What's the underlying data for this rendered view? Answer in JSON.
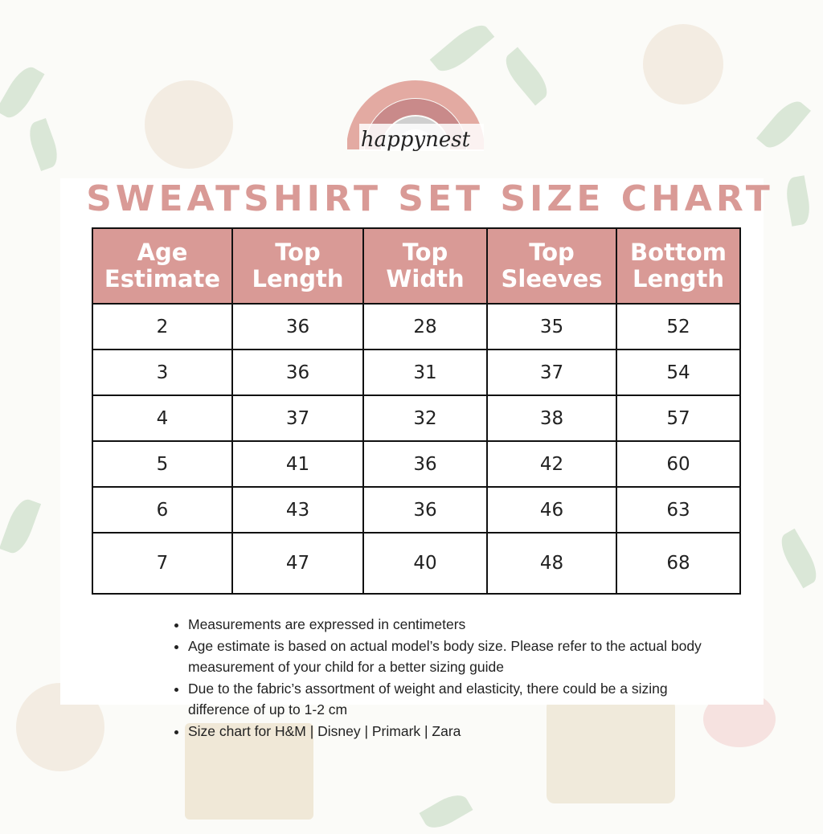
{
  "brand": {
    "logo_text": "happynest",
    "colors": {
      "rainbow_outer": "#e3aaa2",
      "rainbow_mid": "#c98a8a",
      "rainbow_inner": "#cfcfcf"
    }
  },
  "title": "SWEATSHIRT SET SIZE CHART",
  "accent_color": "#d99a96",
  "table": {
    "headers": [
      [
        "Age",
        "Estimate"
      ],
      [
        "Top",
        "Length"
      ],
      [
        "Top",
        "Width"
      ],
      [
        "Top",
        "Sleeves"
      ],
      [
        "Bottom",
        "Length"
      ]
    ],
    "rows": [
      [
        "2",
        "36",
        "28",
        "35",
        "52"
      ],
      [
        "3",
        "36",
        "31",
        "37",
        "54"
      ],
      [
        "4",
        "37",
        "32",
        "38",
        "57"
      ],
      [
        "5",
        "41",
        "36",
        "42",
        "60"
      ],
      [
        "6",
        "43",
        "36",
        "46",
        "63"
      ],
      [
        "7",
        "47",
        "40",
        "48",
        "68"
      ]
    ]
  },
  "notes": [
    "Measurements are expressed in centimeters",
    "Age estimate is based on actual model’s body size.  Please refer to the actual body measurement of your child for a better sizing guide",
    "Due to the fabric’s assortment of weight and elasticity, there could be a sizing difference of up to 1-2 cm",
    "Size chart for H&M | Disney | Primark | Zara"
  ]
}
